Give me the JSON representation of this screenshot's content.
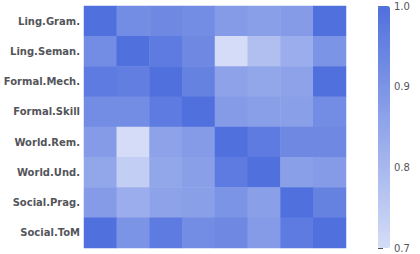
{
  "chart_data": {
    "type": "heatmap",
    "categories": [
      "Ling.Gram.",
      "Ling.Seman.",
      "Formal.Mech.",
      "Formal.Skill",
      "World.Rem.",
      "World.Und.",
      "Social.Prag.",
      "Social.ToM"
    ],
    "matrix": [
      [
        1.0,
        0.92,
        0.93,
        0.92,
        0.88,
        0.87,
        0.88,
        1.0
      ],
      [
        0.92,
        1.0,
        0.97,
        0.93,
        0.7,
        0.78,
        0.83,
        0.9
      ],
      [
        0.97,
        0.96,
        1.0,
        0.95,
        0.86,
        0.85,
        0.86,
        1.0
      ],
      [
        0.92,
        0.92,
        0.97,
        1.0,
        0.88,
        0.87,
        0.87,
        0.92
      ],
      [
        0.88,
        0.7,
        0.86,
        0.88,
        1.0,
        0.97,
        0.93,
        0.93
      ],
      [
        0.85,
        0.74,
        0.85,
        0.87,
        0.97,
        1.0,
        0.87,
        0.88
      ],
      [
        0.88,
        0.83,
        0.86,
        0.87,
        0.9,
        0.87,
        1.0,
        0.95
      ],
      [
        1.0,
        0.9,
        0.97,
        0.92,
        0.93,
        0.88,
        0.97,
        1.0
      ]
    ],
    "colorbar_range": [
      0.7,
      1.0
    ],
    "colorbar_ticks": [
      0.7,
      0.8,
      0.9,
      {
        "value": 1.0,
        "label": "1.0"
      }
    ],
    "tick_labels": "y",
    "grid": false
  }
}
